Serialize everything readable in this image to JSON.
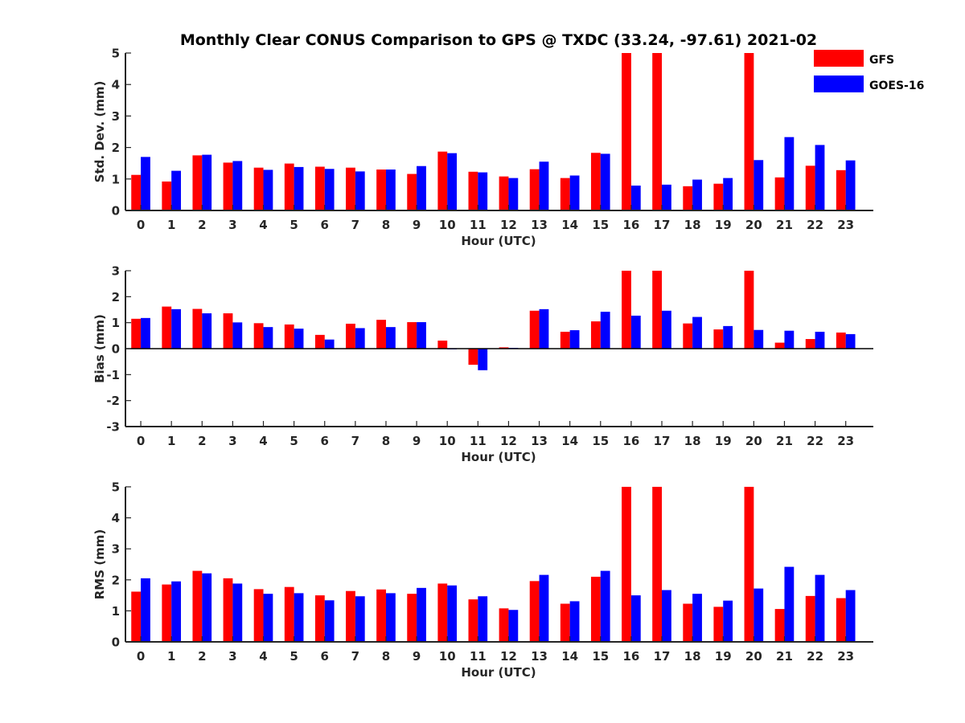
{
  "title": "Monthly Clear CONUS Comparison to GPS @ TXDC (33.24, -97.61) 2021-02",
  "legend": [
    {
      "name": "GFS",
      "color": "#ff0000"
    },
    {
      "name": "GOES-16",
      "color": "#0000ff"
    }
  ],
  "chart_data": [
    {
      "type": "bar",
      "id": "std",
      "xlabel": "Hour (UTC)",
      "ylabel": "Std. Dev. (mm)",
      "ylim": [
        0,
        5
      ],
      "yticks": [
        0,
        1,
        2,
        3,
        4,
        5
      ],
      "categories": [
        "0",
        "1",
        "2",
        "3",
        "4",
        "5",
        "6",
        "7",
        "8",
        "9",
        "10",
        "11",
        "12",
        "13",
        "14",
        "15",
        "16",
        "17",
        "18",
        "19",
        "20",
        "21",
        "22",
        "23"
      ],
      "series": [
        {
          "name": "GFS",
          "values": [
            1.13,
            0.92,
            1.75,
            1.52,
            1.36,
            1.49,
            1.39,
            1.36,
            1.3,
            1.16,
            1.87,
            1.23,
            1.08,
            1.31,
            1.03,
            1.83,
            5.0,
            5.0,
            0.77,
            0.85,
            5.0,
            1.05,
            1.42,
            1.28
          ]
        },
        {
          "name": "GOES-16",
          "values": [
            1.7,
            1.26,
            1.77,
            1.57,
            1.29,
            1.38,
            1.32,
            1.24,
            1.3,
            1.41,
            1.82,
            1.21,
            1.03,
            1.55,
            1.11,
            1.8,
            0.79,
            0.82,
            0.98,
            1.03,
            1.6,
            2.33,
            2.08,
            1.59
          ]
        }
      ]
    },
    {
      "type": "bar",
      "id": "bias",
      "xlabel": "Hour (UTC)",
      "ylabel": "Bias (mm)",
      "ylim": [
        -3,
        3
      ],
      "yticks": [
        -3,
        -2,
        -1,
        0,
        1,
        2,
        3
      ],
      "categories": [
        "0",
        "1",
        "2",
        "3",
        "4",
        "5",
        "6",
        "7",
        "8",
        "9",
        "10",
        "11",
        "12",
        "13",
        "14",
        "15",
        "16",
        "17",
        "18",
        "19",
        "20",
        "21",
        "22",
        "23"
      ],
      "series": [
        {
          "name": "GFS",
          "values": [
            1.15,
            1.62,
            1.53,
            1.36,
            0.98,
            0.93,
            0.53,
            0.96,
            1.11,
            1.02,
            0.31,
            -0.62,
            0.05,
            1.46,
            0.65,
            1.05,
            3.0,
            3.0,
            0.97,
            0.74,
            3.0,
            0.23,
            0.37,
            0.62
          ]
        },
        {
          "name": "GOES-16",
          "values": [
            1.18,
            1.52,
            1.36,
            1.01,
            0.83,
            0.77,
            0.35,
            0.79,
            0.83,
            1.02,
            0.0,
            -0.83,
            0.03,
            1.52,
            0.71,
            1.42,
            1.27,
            1.46,
            1.22,
            0.87,
            0.72,
            0.69,
            0.65,
            0.56
          ]
        }
      ]
    },
    {
      "type": "bar",
      "id": "rms",
      "xlabel": "Hour (UTC)",
      "ylabel": "RMS (mm)",
      "ylim": [
        0,
        5
      ],
      "yticks": [
        0,
        1,
        2,
        3,
        4,
        5
      ],
      "categories": [
        "0",
        "1",
        "2",
        "3",
        "4",
        "5",
        "6",
        "7",
        "8",
        "9",
        "10",
        "11",
        "12",
        "13",
        "14",
        "15",
        "16",
        "17",
        "18",
        "19",
        "20",
        "21",
        "22",
        "23"
      ],
      "series": [
        {
          "name": "GFS",
          "values": [
            1.62,
            1.85,
            2.29,
            2.05,
            1.7,
            1.77,
            1.5,
            1.64,
            1.69,
            1.55,
            1.88,
            1.37,
            1.08,
            1.96,
            1.23,
            2.1,
            5.0,
            5.0,
            1.23,
            1.13,
            5.0,
            1.06,
            1.48,
            1.41
          ]
        },
        {
          "name": "GOES-16",
          "values": [
            2.05,
            1.95,
            2.21,
            1.88,
            1.55,
            1.57,
            1.34,
            1.47,
            1.57,
            1.74,
            1.82,
            1.47,
            1.03,
            2.16,
            1.31,
            2.29,
            1.5,
            1.67,
            1.55,
            1.33,
            1.72,
            2.42,
            2.16,
            1.67
          ]
        }
      ]
    }
  ]
}
